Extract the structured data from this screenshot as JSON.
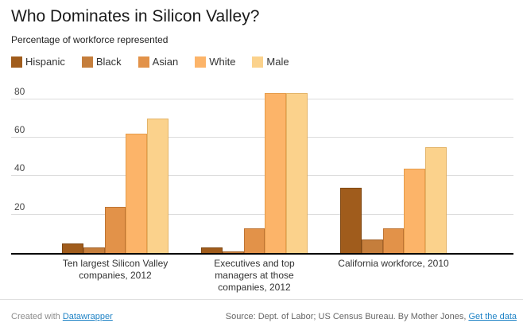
{
  "header": {
    "title": "Who Dominates in Silicon Valley?",
    "subtitle": "Percentage of workforce represented"
  },
  "legend": [
    {
      "label": "Hispanic",
      "color": "#a05c1c",
      "border": "#7f4813"
    },
    {
      "label": "Black",
      "color": "#c57e3c",
      "border": "#a2632b"
    },
    {
      "label": "Asian",
      "color": "#e29249",
      "border": "#be7433"
    },
    {
      "label": "White",
      "color": "#fcb469",
      "border": "#e69c49"
    },
    {
      "label": "Male",
      "color": "#fbd28c",
      "border": "#e3b469"
    }
  ],
  "chart_data": {
    "type": "bar",
    "title": "Who Dominates in Silicon Valley?",
    "subtitle": "Percentage of workforce represented",
    "categories": [
      "Ten largest Silicon Valley companies, 2012",
      "Executives and top managers at those companies, 2012",
      "California workforce, 2010"
    ],
    "series": [
      {
        "name": "Hispanic",
        "values": [
          5,
          3,
          34
        ]
      },
      {
        "name": "Black",
        "values": [
          3,
          1,
          7
        ]
      },
      {
        "name": "Asian",
        "values": [
          24,
          13,
          13
        ]
      },
      {
        "name": "White",
        "values": [
          62,
          83,
          44
        ]
      },
      {
        "name": "Male",
        "values": [
          70,
          83,
          55
        ]
      }
    ],
    "ylabel": "",
    "xlabel": "",
    "ylim": [
      0,
      89
    ],
    "yticks": [
      20,
      40,
      60,
      80
    ],
    "grid": true,
    "legend_position": "top"
  },
  "footer": {
    "left_prefix": "Created with ",
    "left_link": "Datawrapper",
    "right_text": "Source: Dept. of Labor; US Census Bureau. By Mother Jones, ",
    "right_link": "Get the data",
    "link_color": "#1f83c6"
  }
}
